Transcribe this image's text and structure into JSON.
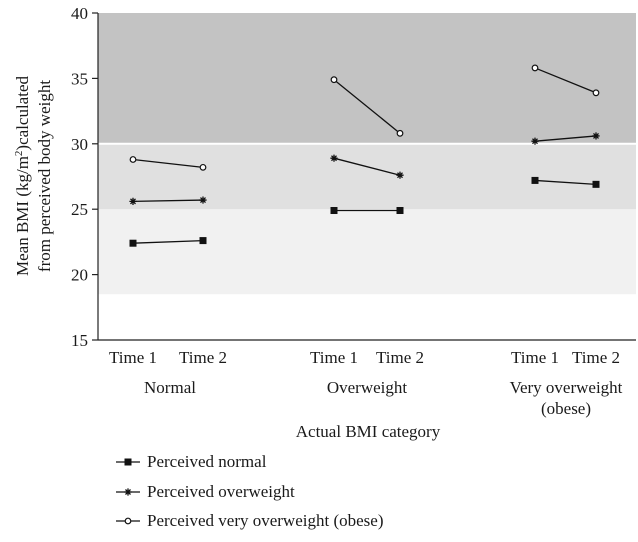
{
  "chart_data": {
    "type": "line",
    "title": "",
    "ylabel_line1_pre": "Mean BMI (kg/m",
    "ylabel_sup": "2",
    "ylabel_line1_post": ")calculated",
    "ylabel_line2": "from perceived body weight",
    "xlabel": "Actual BMI category",
    "ylim": [
      15,
      40
    ],
    "yticks": [
      15,
      20,
      25,
      30,
      35,
      40
    ],
    "x_tick_labels": [
      "Time 1",
      "Time 2",
      "Time 1",
      "Time 2",
      "Time 1",
      "Time 2"
    ],
    "groups": [
      {
        "label": "Normal",
        "label2": ""
      },
      {
        "label": "Overweight",
        "label2": ""
      },
      {
        "label": "Very overweight",
        "label2": "(obese)"
      }
    ],
    "bands": [
      {
        "from": 18.5,
        "to": 25,
        "color": "#f1f1f1"
      },
      {
        "from": 25,
        "to": 30,
        "color": "#e0e0e0"
      },
      {
        "from": 30,
        "to": 40,
        "color": "#c3c3c3"
      }
    ],
    "series": [
      {
        "name": "Perceived normal",
        "marker": "square",
        "values": [
          [
            22.4,
            22.6
          ],
          [
            24.9,
            24.9
          ],
          [
            27.2,
            26.9
          ]
        ]
      },
      {
        "name": "Perceived overweight",
        "marker": "star",
        "values": [
          [
            25.6,
            25.7
          ],
          [
            28.9,
            27.6
          ],
          [
            30.2,
            30.6
          ]
        ]
      },
      {
        "name": "Perceived very overweight (obese)",
        "marker": "circle",
        "values": [
          [
            28.8,
            28.2
          ],
          [
            34.9,
            30.8
          ],
          [
            35.8,
            33.9
          ]
        ]
      }
    ],
    "grid": false,
    "legend_position": "bottom-left"
  }
}
